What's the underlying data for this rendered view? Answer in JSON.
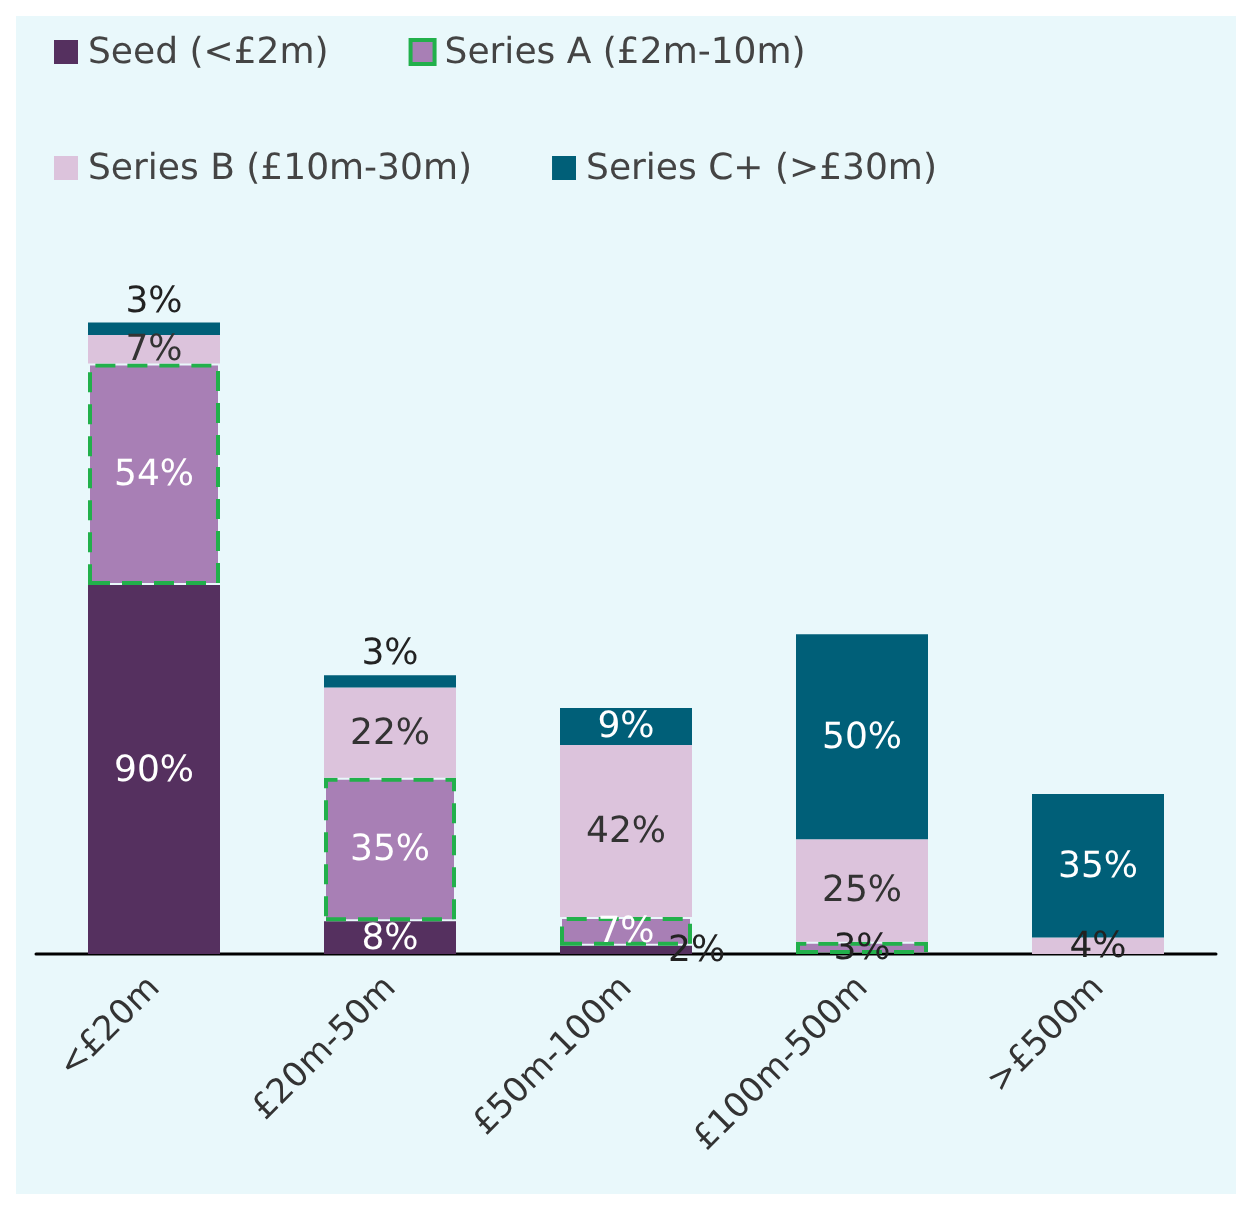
{
  "chart_data": {
    "type": "bar",
    "stacked": true,
    "legend": "top",
    "categories": [
      "<£20m",
      "£20m-50m",
      "£50m-100m",
      "£100m-500m",
      ">£500m"
    ],
    "series": [
      {
        "name": "Seed (<£2m)",
        "color": "#55305f",
        "values": [
          90,
          8,
          2,
          null,
          null
        ],
        "value_labels": [
          "90%",
          "8%",
          "2%",
          null,
          null
        ]
      },
      {
        "name": "Series A (£2m-10m)",
        "color": "#a87fb5",
        "line_style": "dashed",
        "values": [
          54,
          35,
          7,
          3,
          null
        ],
        "value_labels": [
          "54%",
          "35%",
          "7%",
          "3%",
          null
        ]
      },
      {
        "name": "Series B (£10m-30m)",
        "color": "#dcc3dc",
        "values": [
          7,
          22,
          42,
          25,
          4
        ],
        "value_labels": [
          "7%",
          "22%",
          "42%",
          "25%",
          "4%"
        ]
      },
      {
        "name": "Series C+ (>£30m)",
        "color": "#005f78",
        "values": [
          3,
          3,
          9,
          50,
          35
        ],
        "value_labels": [
          "3%",
          "3%",
          "9%",
          "50%",
          "35%"
        ]
      }
    ]
  }
}
